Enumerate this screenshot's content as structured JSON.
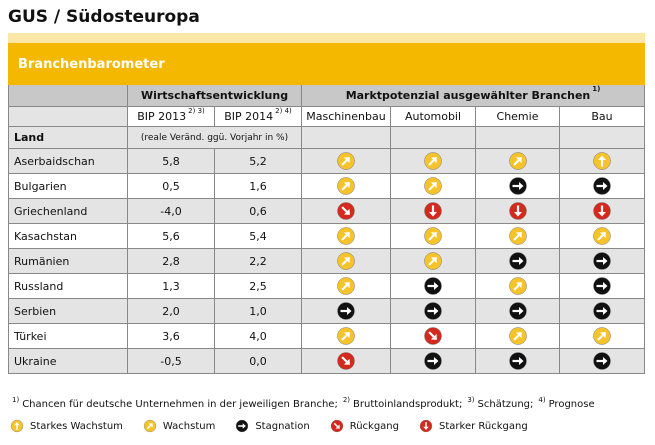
{
  "header": {
    "title": "GUS / Südosteuropa",
    "band": "Branchenbarometer"
  },
  "table": {
    "group1": "Wirtschaftsentwicklung",
    "group2": {
      "text": "Marktpotenzial ausgewählter Branchen",
      "sup": "1)"
    },
    "columns": [
      {
        "text": "BIP 2013",
        "sup": "2) 3)"
      },
      {
        "text": "BIP 2014",
        "sup": "2) 4)"
      }
    ],
    "sectors": [
      "Maschinenbau",
      "Automobil",
      "Chemie",
      "Bau"
    ],
    "land": "Land",
    "unit_note": "(reale Veränd. ggü. Vorjahr in %)",
    "rows": [
      [
        "Aserbaidschan",
        "5,8",
        "5,2",
        "Wachstum",
        "Wachstum",
        "Wachstum",
        "Starkes Wachstum"
      ],
      [
        "Bulgarien",
        "0,5",
        "1,6",
        "Wachstum",
        "Wachstum",
        "Stagnation",
        "Stagnation"
      ],
      [
        "Griechenland",
        "-4,0",
        "0,6",
        "Rückgang",
        "Starker Rückgang",
        "Starker Rückgang",
        "Starker Rückgang"
      ],
      [
        "Kasachstan",
        "5,6",
        "5,4",
        "Wachstum",
        "Wachstum",
        "Wachstum",
        "Wachstum"
      ],
      [
        "Rumänien",
        "2,8",
        "2,2",
        "Wachstum",
        "Wachstum",
        "Stagnation",
        "Stagnation"
      ],
      [
        "Russland",
        "1,3",
        "2,5",
        "Wachstum",
        "Stagnation",
        "Wachstum",
        "Stagnation"
      ],
      [
        "Serbien",
        "2,0",
        "1,0",
        "Stagnation",
        "Stagnation",
        "Stagnation",
        "Stagnation"
      ],
      [
        "Türkei",
        "3,6",
        "4,0",
        "Wachstum",
        "Rückgang",
        "Wachstum",
        "Wachstum"
      ],
      [
        "Ukraine",
        "-0,5",
        "0,0",
        "Rückgang",
        "Stagnation",
        "Stagnation",
        "Stagnation"
      ]
    ]
  },
  "footnotes": [
    {
      "mark": "1)",
      "text": "Chancen für deutsche Unternehmen in der jeweiligen Branche;"
    },
    {
      "mark": "2)",
      "text": "Bruttoinlandsprodukt;"
    },
    {
      "mark": "3)",
      "text": "Schätzung;"
    },
    {
      "mark": "4)",
      "text": "Prognose"
    }
  ],
  "legend": [
    "Starkes Wachstum",
    "Wachstum",
    "Stagnation",
    "Rückgang",
    "Starker Rückgang"
  ]
}
